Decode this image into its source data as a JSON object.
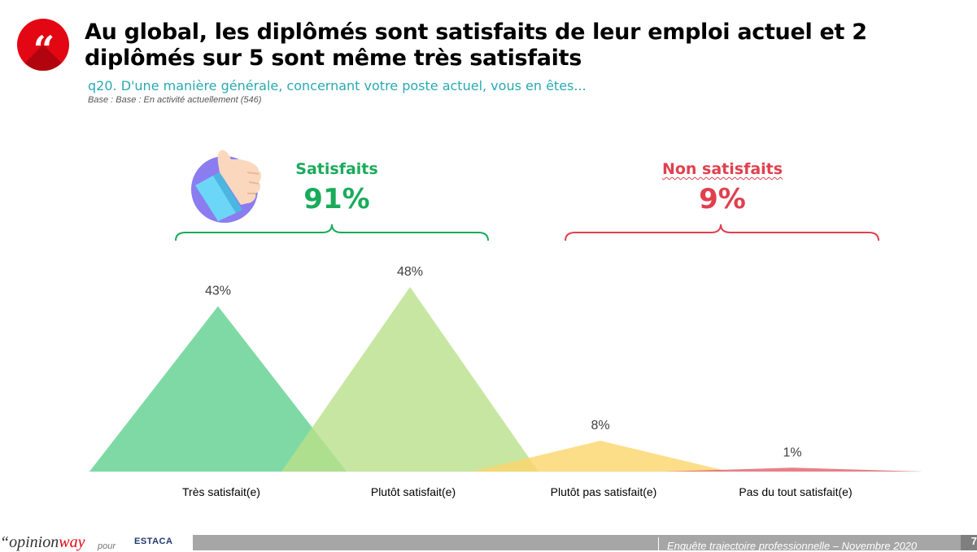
{
  "header": {
    "quote_glyph": "“",
    "title": "Au global, les diplômés sont satisfaits de leur emploi actuel et 2 diplômés sur 5 sont même très satisfaits",
    "question": "q20. D'une manière générale, concernant votre poste actuel, vous en êtes...",
    "base": "Base : Base : En activité  actuellement (546)"
  },
  "groups": {
    "satisfied": {
      "label": "Satisfaits",
      "value": "91%",
      "color": "#1aab5a"
    },
    "not_satisfied": {
      "label": "Non satisfaits",
      "value": "9%",
      "color": "#e0404e"
    }
  },
  "chart_data": {
    "type": "area",
    "subtype": "overlapping-triangles",
    "title": "Au global, les diplômés sont satisfaits de leur emploi actuel et 2 diplômés sur 5 sont même très satisfaits",
    "categories": [
      "Très satisfait(e)",
      "Plutôt satisfait(e)",
      "Plutôt pas satisfait(e)",
      "Pas du tout satisfait(e)"
    ],
    "values": [
      43,
      48,
      8,
      1
    ],
    "value_labels": [
      "43%",
      "48%",
      "8%",
      "1%"
    ],
    "unit": "%",
    "colors": [
      "#5fcf8f",
      "#b9e08a",
      "#fdd66a",
      "#e4606a"
    ],
    "ylim": [
      0,
      50
    ],
    "grid": false,
    "legend": "none"
  },
  "footer": {
    "brand_prefix": "“opinion",
    "brand_suffix": "way",
    "pour": "pour",
    "client": "ESTACA",
    "survey": "Enquête trajectoire professionnelle – Novembre 2020",
    "page": "7"
  }
}
